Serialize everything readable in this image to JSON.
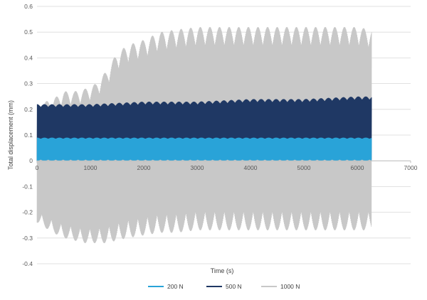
{
  "chart_data": {
    "type": "line",
    "title": "",
    "xlabel": "Time (s)",
    "ylabel": "Total displacement (mm)",
    "xlim": [
      0,
      7000
    ],
    "ylim": [
      -0.4,
      0.6
    ],
    "x_ticks": [
      "0",
      "1000",
      "2000",
      "3000",
      "4000",
      "5000",
      "6000",
      "7000"
    ],
    "y_ticks": [
      "0.6",
      "0.5",
      "0.4",
      "0.3",
      "0.2",
      "0.1",
      "0",
      "-0.1",
      "-0.2",
      "-0.3",
      "-0.4"
    ],
    "grid": true,
    "legend_position": "bottom",
    "series": [
      {
        "name": "1000 N",
        "color": "#c8c8c8",
        "x": [
          0,
          300,
          500,
          700,
          900,
          1100,
          1300,
          1500,
          1700,
          2000,
          2300,
          2600,
          3000,
          3500,
          4000,
          4500,
          5000,
          5500,
          6000,
          6270
        ],
        "envelope_max": [
          0.22,
          0.24,
          0.27,
          0.27,
          0.28,
          0.3,
          0.35,
          0.42,
          0.45,
          0.47,
          0.5,
          0.51,
          0.52,
          0.52,
          0.52,
          0.52,
          0.52,
          0.52,
          0.52,
          0.51
        ],
        "envelope_min": [
          -0.24,
          -0.28,
          -0.3,
          -0.31,
          -0.32,
          -0.32,
          -0.32,
          -0.31,
          -0.3,
          -0.29,
          -0.28,
          -0.28,
          -0.27,
          -0.27,
          -0.27,
          -0.27,
          -0.27,
          -0.27,
          -0.27,
          -0.27
        ]
      },
      {
        "name": "500 N",
        "color": "#1f3864",
        "x": [
          0,
          1000,
          2000,
          3000,
          4000,
          5000,
          6000,
          6270
        ],
        "envelope_max": [
          0.22,
          0.22,
          0.23,
          0.23,
          0.24,
          0.24,
          0.25,
          0.25
        ],
        "envelope_min": [
          0.0,
          0.0,
          0.0,
          0.0,
          0.0,
          0.0,
          0.0,
          0.0
        ]
      },
      {
        "name": "200 N",
        "color": "#29a3d8",
        "x": [
          0,
          1000,
          2000,
          3000,
          4000,
          5000,
          6000,
          6270
        ],
        "envelope_max": [
          0.09,
          0.09,
          0.09,
          0.09,
          0.09,
          0.09,
          0.09,
          0.09
        ],
        "envelope_min": [
          0.0,
          0.0,
          0.0,
          0.0,
          0.0,
          0.0,
          0.0,
          0.0
        ]
      }
    ],
    "legend": [
      "200 N",
      "500 N",
      "1000 N"
    ]
  }
}
